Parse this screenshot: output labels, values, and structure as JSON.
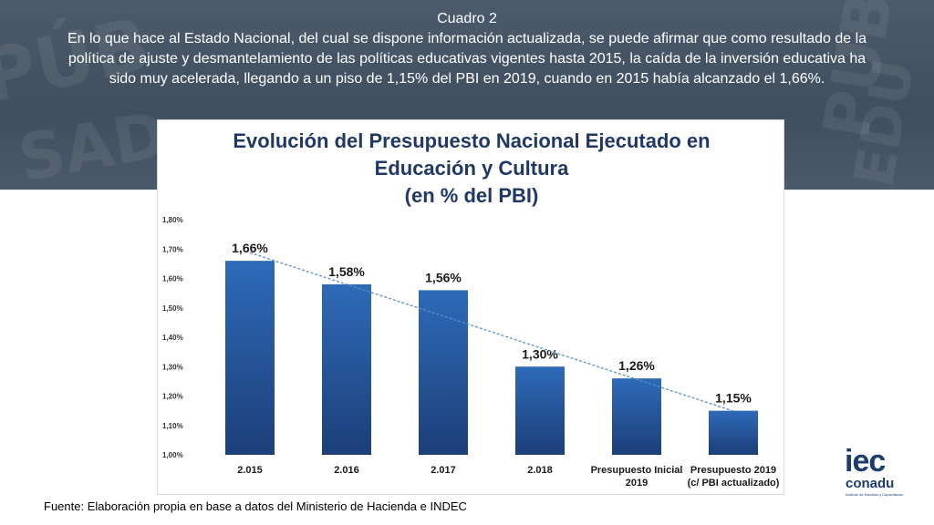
{
  "caption": {
    "title": "Cuadro 2",
    "text": "En lo que hace al Estado Nacional, del cual se dispone información actualizada, se puede afirmar que como resultado de la política de ajuste y desmantelamiento de las políticas educativas vigentes hasta 2015, la caída de la inversión educativa ha sido muy acelerada, llegando a un piso de 1,15% del PBI en 2019, cuando en 2015 había alcanzado el 1,66%."
  },
  "banner": {
    "color": "#445566"
  },
  "chart_data": {
    "type": "bar",
    "title_lines": [
      "Evolución del Presupuesto Nacional Ejecutado en",
      "Educación y Cultura",
      "(en % del PBI)"
    ],
    "categories": [
      [
        "2.015"
      ],
      [
        "2.016"
      ],
      [
        "2.017"
      ],
      [
        "2.018"
      ],
      [
        "Presupuesto Inicial",
        "2019"
      ],
      [
        "Presupuesto 2019",
        "(c/ PBI actualizado)"
      ]
    ],
    "values": [
      1.66,
      1.58,
      1.56,
      1.3,
      1.26,
      1.15
    ],
    "data_labels": [
      "1,66%",
      "1,58%",
      "1,56%",
      "1,30%",
      "1,26%",
      "1,15%"
    ],
    "ylim": [
      1.0,
      1.8
    ],
    "yticks": [
      {
        "value": 1.8,
        "label": "1,80%"
      },
      {
        "value": 1.7,
        "label": "1,70%"
      },
      {
        "value": 1.6,
        "label": "1,60%"
      },
      {
        "value": 1.5,
        "label": "1,50%"
      },
      {
        "value": 1.4,
        "label": "1,40%"
      },
      {
        "value": 1.3,
        "label": "1,30%"
      },
      {
        "value": 1.2,
        "label": "1,20%"
      },
      {
        "value": 1.1,
        "label": "1,10%"
      },
      {
        "value": 1.0,
        "label": "1,00%"
      }
    ],
    "trendline": "linear",
    "grid": false,
    "legend": "none",
    "colors": {
      "bar_top": "#2e6ab8",
      "bar_bottom": "#1c3f78",
      "title": "#1f3864",
      "trendline": "#5b8fcc"
    }
  },
  "source": "Fuente: Elaboración propia en base a datos del Ministerio de Hacienda e INDEC",
  "logo": {
    "line1": "iec",
    "line2": "conadu",
    "line3": "Instituto de Estudios y Capacitación"
  }
}
